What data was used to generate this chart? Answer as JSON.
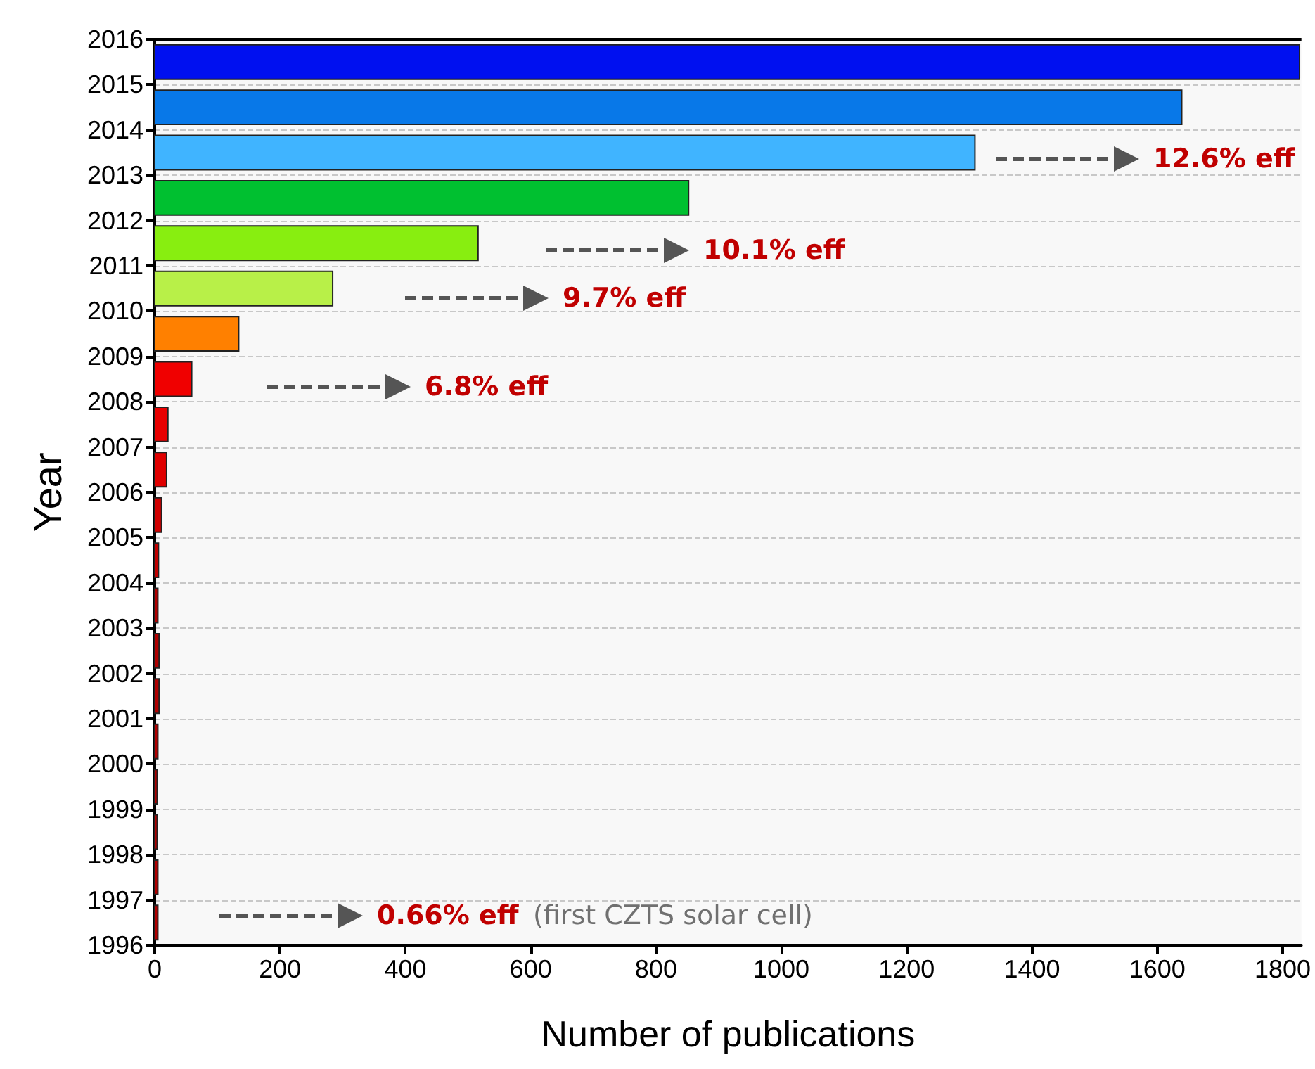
{
  "chart_data": {
    "type": "histogram",
    "orientation": "horizontal",
    "bins": [
      1996,
      1997,
      1998,
      1999,
      2000,
      2001,
      2002,
      2003,
      2004,
      2005,
      2006,
      2007,
      2008,
      2009,
      2010,
      2011,
      2012,
      2013,
      2014,
      2015,
      2016
    ],
    "values": [
      5,
      5,
      4,
      4,
      5,
      7,
      7,
      5,
      6,
      11,
      19,
      21,
      59,
      134,
      284,
      516,
      852,
      1309,
      1639,
      1827
    ],
    "colors": [
      "#b00000",
      "#b00000",
      "#b00000",
      "#b00000",
      "#b00000",
      "#b00000",
      "#b00000",
      "#b00000",
      "#c00000",
      "#d00000",
      "#e00000",
      "#e80000",
      "#f00000",
      "#ff8000",
      "#b8f048",
      "#88ee10",
      "#00c030",
      "#40b4ff",
      "#0878e8",
      "#0010f0"
    ],
    "xlabel": "Number of publications",
    "ylabel": "Year",
    "xlim": [
      0,
      1830
    ],
    "xticks": [
      0,
      200,
      400,
      600,
      800,
      1000,
      1200,
      1400,
      1600,
      1800
    ],
    "ylim": [
      1996,
      2016
    ],
    "yticks": [
      1996,
      1997,
      1998,
      1999,
      2000,
      2001,
      2002,
      2003,
      2004,
      2005,
      2006,
      2007,
      2008,
      2009,
      2010,
      2011,
      2012,
      2013,
      2014,
      2015,
      2016
    ],
    "grid": "y",
    "annotations": [
      "12.6% eff",
      "10.1% eff",
      "9.7% eff",
      "6.8% eff",
      "0.66% eff",
      "(first CZTS solar cell)"
    ]
  }
}
